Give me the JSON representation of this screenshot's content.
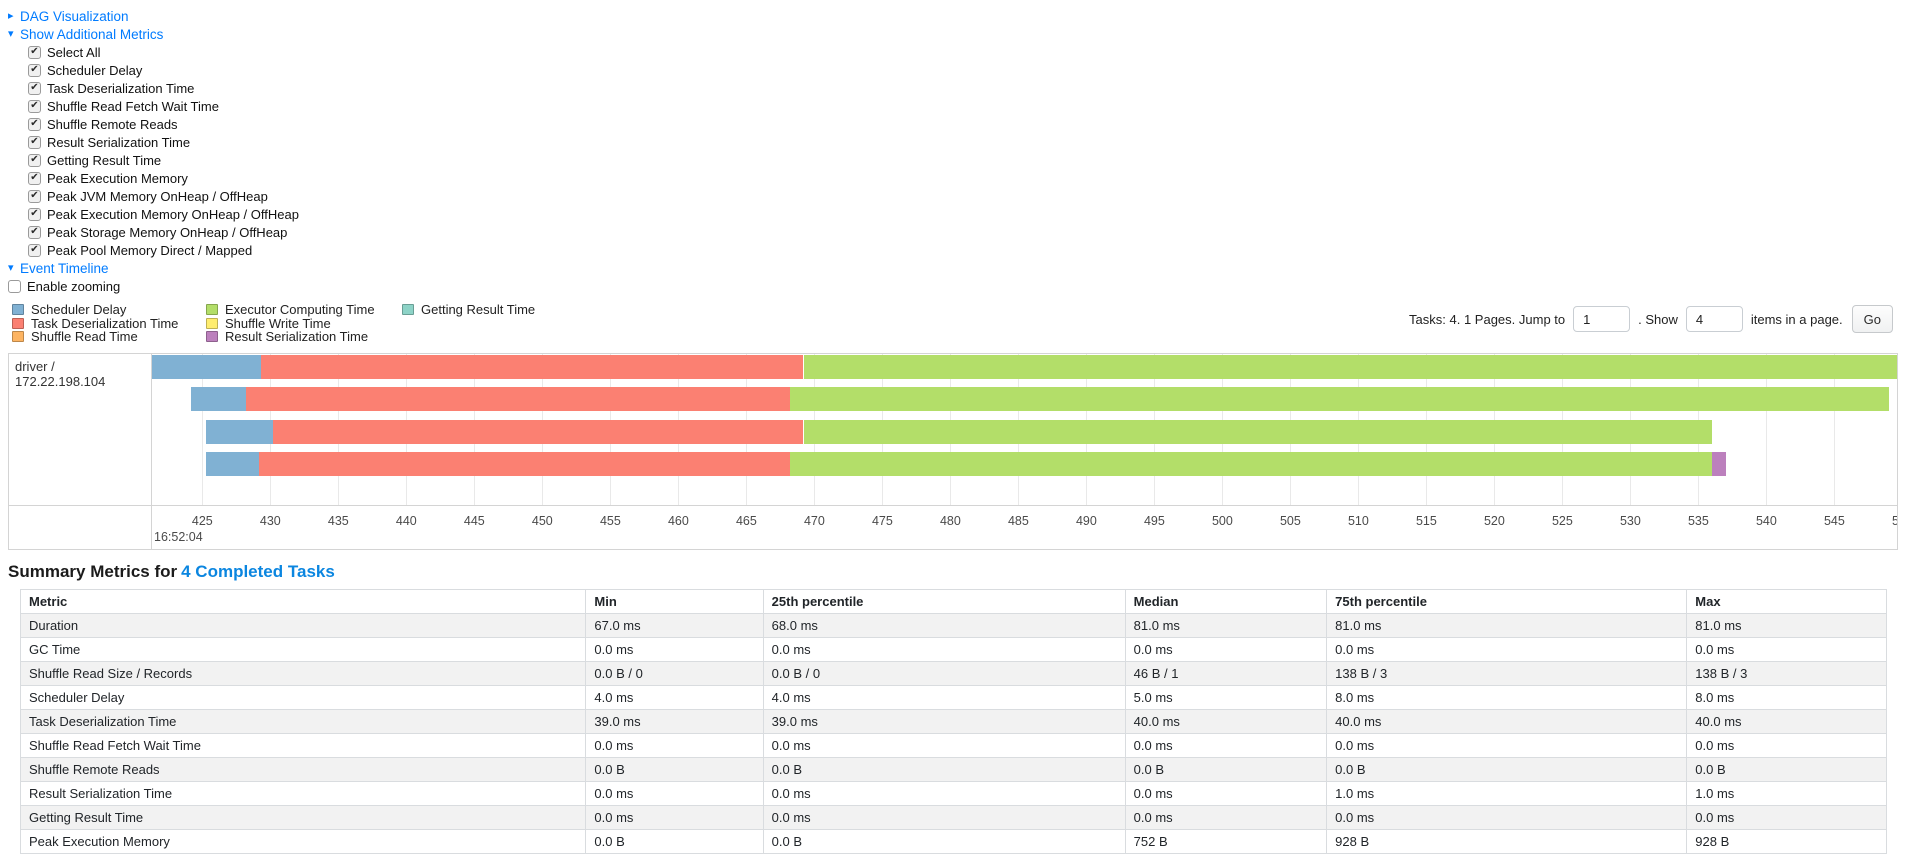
{
  "colors": {
    "link": "#007bff",
    "scheduler": "#80B1D3",
    "deserialization": "#FB8072",
    "shuffle_read": "#FDB462",
    "executor": "#B3DE69",
    "shuffle_write": "#FFED6F",
    "serialization": "#BC80BD",
    "getting_result": "#8DD3C7"
  },
  "toggles": {
    "dag": {
      "label": "DAG Visualization",
      "state": "collapsed",
      "arrow": "▸"
    },
    "metrics": {
      "label": "Show Additional Metrics",
      "state": "expanded",
      "arrow": "▾"
    },
    "timeline": {
      "label": "Event Timeline",
      "state": "expanded",
      "arrow": "▾"
    }
  },
  "metric_checkboxes": [
    {
      "label": "Select All",
      "checked": true
    },
    {
      "label": "Scheduler Delay",
      "checked": true
    },
    {
      "label": "Task Deserialization Time",
      "checked": true
    },
    {
      "label": "Shuffle Read Fetch Wait Time",
      "checked": true
    },
    {
      "label": "Shuffle Remote Reads",
      "checked": true
    },
    {
      "label": "Result Serialization Time",
      "checked": true
    },
    {
      "label": "Getting Result Time",
      "checked": true
    },
    {
      "label": "Peak Execution Memory",
      "checked": true
    },
    {
      "label": "Peak JVM Memory OnHeap / OffHeap",
      "checked": true
    },
    {
      "label": "Peak Execution Memory OnHeap / OffHeap",
      "checked": true
    },
    {
      "label": "Peak Storage Memory OnHeap / OffHeap",
      "checked": true
    },
    {
      "label": "Peak Pool Memory Direct / Mapped",
      "checked": true
    }
  ],
  "enable_zooming": {
    "label": "Enable zooming",
    "checked": false
  },
  "legend": {
    "columns": [
      [
        {
          "key": "scheduler",
          "label": "Scheduler Delay"
        },
        {
          "key": "deserialization",
          "label": "Task Deserialization Time"
        },
        {
          "key": "shuffle_read",
          "label": "Shuffle Read Time"
        }
      ],
      [
        {
          "key": "executor",
          "label": "Executor Computing Time"
        },
        {
          "key": "shuffle_write",
          "label": "Shuffle Write Time"
        },
        {
          "key": "serialization",
          "label": "Result Serialization Time"
        }
      ],
      [
        {
          "key": "getting_result",
          "label": "Getting Result Time"
        }
      ]
    ]
  },
  "pagination": {
    "summary_text": "Tasks: 4. 1 Pages. Jump to",
    "jump_value": "1",
    "mid_text": ". Show",
    "show_value": "4",
    "suffix_text": "items in a page.",
    "go_label": "Go"
  },
  "timeline": {
    "executor_label": "driver / 172.22.198.104",
    "axis": {
      "min": 421.3,
      "max": 549.6,
      "tick_start": 425,
      "tick_end": 550,
      "tick_step": 5,
      "base_time": "16:52:04"
    },
    "row_tops": [
      1,
      33,
      66,
      98
    ],
    "tasks": [
      {
        "segments": [
          {
            "key": "scheduler",
            "from": 421.3,
            "to": 429.3
          },
          {
            "key": "deserialization",
            "from": 429.3,
            "to": 469.2
          },
          {
            "key": "executor",
            "from": 469.2,
            "to": 549.7
          }
        ]
      },
      {
        "segments": [
          {
            "key": "scheduler",
            "from": 424.2,
            "to": 428.2
          },
          {
            "key": "deserialization",
            "from": 428.2,
            "to": 468.2
          },
          {
            "key": "executor",
            "from": 468.2,
            "to": 549.0
          }
        ]
      },
      {
        "segments": [
          {
            "key": "scheduler",
            "from": 425.3,
            "to": 430.2
          },
          {
            "key": "deserialization",
            "from": 430.2,
            "to": 469.2
          },
          {
            "key": "executor",
            "from": 469.2,
            "to": 536.0
          }
        ]
      },
      {
        "segments": [
          {
            "key": "scheduler",
            "from": 425.3,
            "to": 429.2
          },
          {
            "key": "deserialization",
            "from": 429.2,
            "to": 468.2
          },
          {
            "key": "executor",
            "from": 468.2,
            "to": 536.0
          },
          {
            "key": "serialization",
            "from": 536.0,
            "to": 537.0
          }
        ]
      }
    ]
  },
  "summary": {
    "heading_prefix": "Summary Metrics for",
    "heading_link": "4 Completed Tasks",
    "columns": [
      "Metric",
      "Min",
      "25th percentile",
      "Median",
      "75th percentile",
      "Max"
    ],
    "column_widths_pct": [
      30.3,
      9.5,
      19.4,
      10.8,
      19.3,
      10.7
    ],
    "rows": [
      {
        "metric": "Duration",
        "values": [
          "67.0 ms",
          "68.0 ms",
          "81.0 ms",
          "81.0 ms",
          "81.0 ms"
        ]
      },
      {
        "metric": "GC Time",
        "values": [
          "0.0 ms",
          "0.0 ms",
          "0.0 ms",
          "0.0 ms",
          "0.0 ms"
        ]
      },
      {
        "metric": "Shuffle Read Size / Records",
        "values": [
          "0.0 B / 0",
          "0.0 B / 0",
          "46 B / 1",
          "138 B / 3",
          "138 B / 3"
        ]
      },
      {
        "metric": "Scheduler Delay",
        "values": [
          "4.0 ms",
          "4.0 ms",
          "5.0 ms",
          "8.0 ms",
          "8.0 ms"
        ]
      },
      {
        "metric": "Task Deserialization Time",
        "values": [
          "39.0 ms",
          "39.0 ms",
          "40.0 ms",
          "40.0 ms",
          "40.0 ms"
        ]
      },
      {
        "metric": "Shuffle Read Fetch Wait Time",
        "values": [
          "0.0 ms",
          "0.0 ms",
          "0.0 ms",
          "0.0 ms",
          "0.0 ms"
        ]
      },
      {
        "metric": "Shuffle Remote Reads",
        "values": [
          "0.0 B",
          "0.0 B",
          "0.0 B",
          "0.0 B",
          "0.0 B"
        ]
      },
      {
        "metric": "Result Serialization Time",
        "values": [
          "0.0 ms",
          "0.0 ms",
          "0.0 ms",
          "1.0 ms",
          "1.0 ms"
        ]
      },
      {
        "metric": "Getting Result Time",
        "values": [
          "0.0 ms",
          "0.0 ms",
          "0.0 ms",
          "0.0 ms",
          "0.0 ms"
        ]
      },
      {
        "metric": "Peak Execution Memory",
        "values": [
          "0.0 B",
          "0.0 B",
          "752 B",
          "928 B",
          "928 B"
        ]
      }
    ]
  }
}
